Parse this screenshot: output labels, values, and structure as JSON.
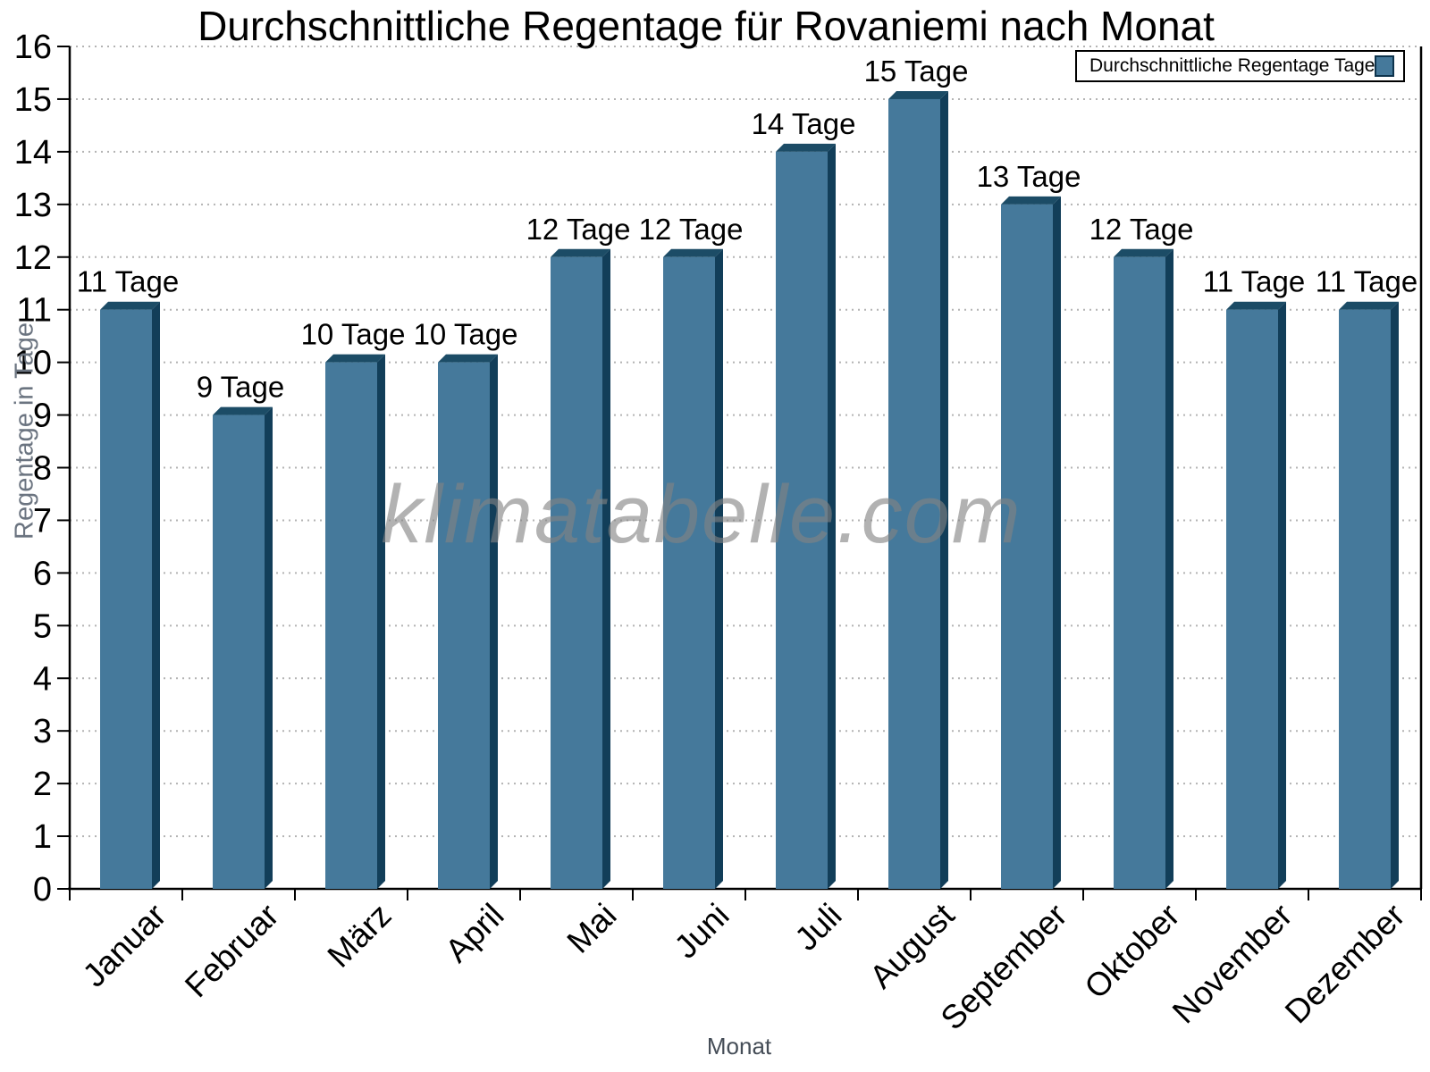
{
  "chart_data": {
    "type": "bar",
    "title": "Durchschnittliche Regentage für Rovaniemi nach Monat",
    "xlabel": "Monat",
    "ylabel": "Regentage in Tage",
    "categories": [
      "Januar",
      "Februar",
      "März",
      "April",
      "Mai",
      "Juni",
      "Juli",
      "August",
      "September",
      "Oktober",
      "November",
      "Dezember"
    ],
    "values": [
      11,
      9,
      10,
      10,
      12,
      12,
      14,
      15,
      13,
      12,
      11,
      11
    ],
    "data_labels": [
      "11 Tage",
      "9 Tage",
      "10 Tage",
      "10 Tage",
      "12 Tage",
      "12 Tage",
      "14 Tage",
      "15 Tage",
      "13 Tage",
      "12 Tage",
      "11 Tage",
      "11 Tage"
    ],
    "ylim": [
      0,
      16
    ],
    "ytick_step": 1,
    "grid": "horizontal-dotted",
    "legend_label": "Durchschnittliche Regentage Tage",
    "legend_position": "top-right",
    "watermark": "klimatabelle.com",
    "colors": {
      "bar_face": "#45799B",
      "bar_side": "#123E59",
      "bar_top": "#1C4C66",
      "grid": "#b3b3b3",
      "axis": "#000000",
      "tick_label": "#000000",
      "value_label": "#000000",
      "ylabel": "#6b7480",
      "xlabel": "#454d57",
      "watermark": "#828282"
    }
  }
}
